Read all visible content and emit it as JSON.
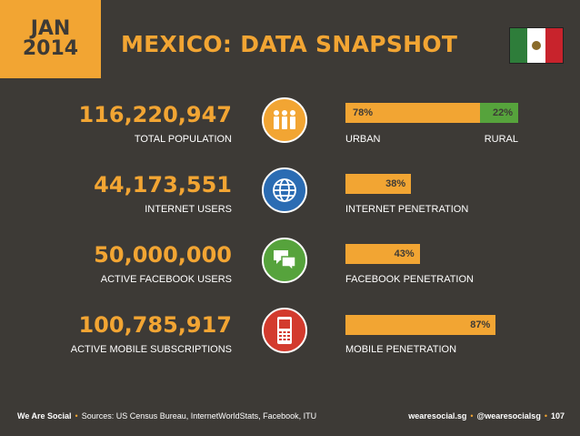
{
  "date": {
    "month": "JAN",
    "year": "2014"
  },
  "title": "MEXICO: DATA SNAPSHOT",
  "stats": [
    {
      "value": "116,220,947",
      "label": "TOTAL POPULATION",
      "icon": "people-icon",
      "color": "#f2a533"
    },
    {
      "value": "44,173,551",
      "label": "INTERNET USERS",
      "icon": "globe-icon",
      "color": "#2b6cb3"
    },
    {
      "value": "50,000,000",
      "label": "ACTIVE FACEBOOK USERS",
      "icon": "speech-bubbles-icon",
      "color": "#56a33c"
    },
    {
      "value": "100,785,917",
      "label": "ACTIVE MOBILE SUBSCRIPTIONS",
      "icon": "mobile-phone-icon",
      "color": "#d33b2e"
    }
  ],
  "chart_data": {
    "type": "bar",
    "bars": [
      {
        "label": "URBAN",
        "label_right": "RURAL",
        "value": 78,
        "pct": "78%",
        "rest_pct": "22%"
      },
      {
        "label": "INTERNET PENETRATION",
        "value": 38,
        "pct": "38%"
      },
      {
        "label": "FACEBOOK PENETRATION",
        "value": 43,
        "pct": "43%"
      },
      {
        "label": "MOBILE PENETRATION",
        "value": 87,
        "pct": "87%"
      }
    ]
  },
  "footer": {
    "brand": "We Are Social",
    "sources": "Sources: US Census Bureau, InternetWorldStats, Facebook, ITU",
    "site": "wearesocial.sg",
    "handle": "@wearesocialsg",
    "page": "107"
  },
  "colors": {
    "accent": "#f2a533",
    "background": "#3d3a36",
    "rural": "#56a33c"
  }
}
